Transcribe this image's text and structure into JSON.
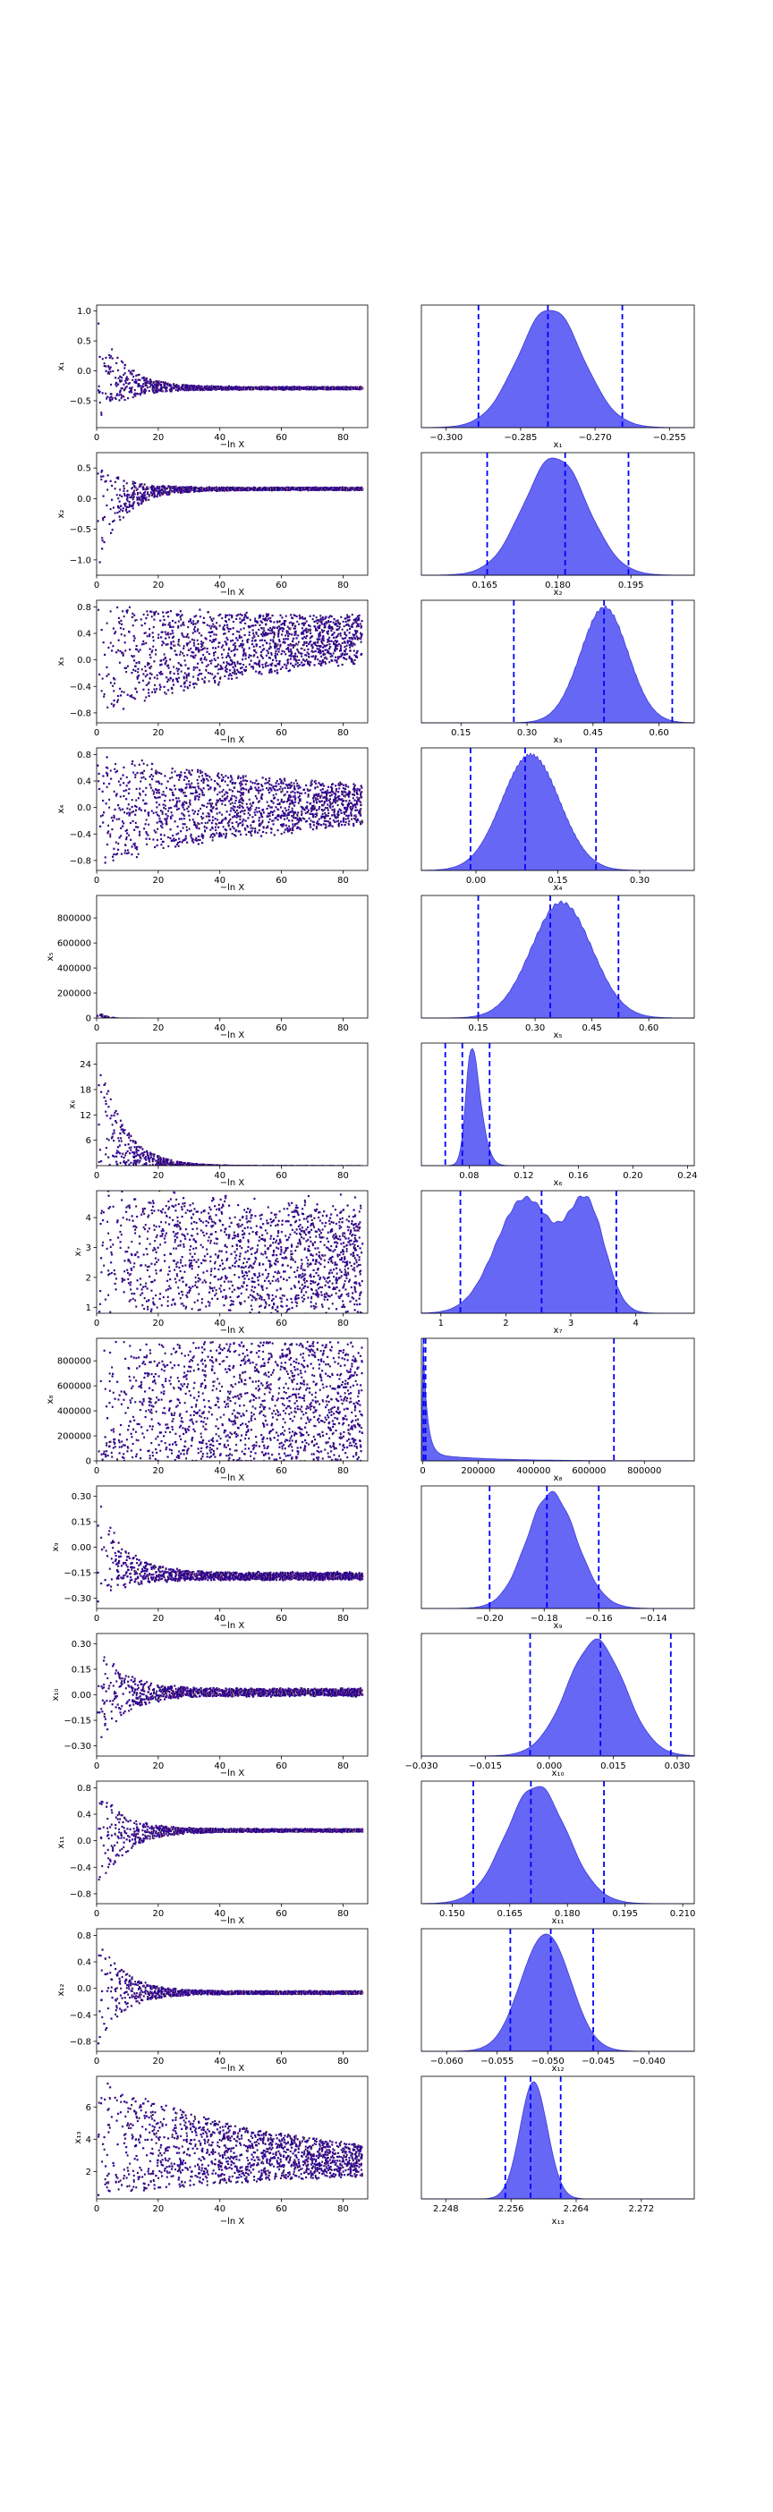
{
  "figure": {
    "colors": {
      "trace_low": "#0d0887",
      "trace_high": "#f0f921",
      "density_fill": "#5656f5",
      "density_edge": "#3b3bd6",
      "quantile_line": "#0000ff",
      "axes": "#000000"
    },
    "trace_xlabel": "−ln X",
    "trace_xticks": [
      "0",
      "20",
      "40",
      "60",
      "80"
    ],
    "trace_xlim": [
      0,
      88
    ]
  },
  "chart_data": [
    {
      "param": "x1",
      "type": "scatter",
      "trace_ylabel": "x₁",
      "trace_yticks": [
        "−0.5",
        "0.0",
        "0.5",
        "1.0"
      ],
      "trace_ylim": [
        -0.95,
        1.1
      ],
      "start_range": [
        -0.85,
        0.9
      ],
      "converged": -0.275,
      "spread": 0.02,
      "density_xlabel": "x₁",
      "density_xticks": [
        "−0.300",
        "−0.285",
        "−0.270",
        "−0.255"
      ],
      "density_xlim": [
        -0.305,
        -0.25
      ],
      "mean": -0.279,
      "sd": 0.0065,
      "quantiles": [
        -0.2935,
        -0.2795,
        -0.2645
      ]
    },
    {
      "param": "x2",
      "type": "scatter",
      "trace_ylabel": "x₂",
      "trace_yticks": [
        "−1.0",
        "−0.5",
        "0.0",
        "0.5"
      ],
      "trace_ylim": [
        -1.25,
        0.75
      ],
      "start_range": [
        -1.15,
        0.62
      ],
      "converged": 0.175,
      "spread": 0.02,
      "density_xlabel": "x₂",
      "density_xticks": [
        "0.165",
        "0.180",
        "0.195"
      ],
      "density_xlim": [
        0.152,
        0.208
      ],
      "mean": 0.1795,
      "sd": 0.0065,
      "quantiles": [
        0.1655,
        0.1815,
        0.1945
      ]
    },
    {
      "param": "x3",
      "type": "scatter",
      "trace_ylabel": "x₃",
      "trace_yticks": [
        "−0.8",
        "−0.4",
        "0.0",
        "0.4",
        "0.8"
      ],
      "trace_ylim": [
        -0.95,
        0.9
      ],
      "start_range": [
        -0.85,
        0.82
      ],
      "converged": 0.45,
      "spread": 0.18,
      "density_xlabel": "x₃",
      "density_xticks": [
        "0.15",
        "0.30",
        "0.45",
        "0.60"
      ],
      "density_xlim": [
        0.06,
        0.68
      ],
      "mean": 0.5,
      "sd": 0.06,
      "skew": -0.5,
      "quantiles": [
        0.27,
        0.475,
        0.63
      ]
    },
    {
      "param": "x4",
      "type": "scatter",
      "trace_ylabel": "x₄",
      "trace_yticks": [
        "−0.8",
        "−0.4",
        "0.0",
        "0.4",
        "0.8"
      ],
      "trace_ylim": [
        -0.95,
        0.9
      ],
      "start_range": [
        -0.85,
        0.82
      ],
      "converged": 0.08,
      "spread": 0.14,
      "density_xlabel": "x₄",
      "density_xticks": [
        "0.00",
        "0.15",
        "0.30"
      ],
      "density_xlim": [
        -0.1,
        0.4
      ],
      "mean": 0.085,
      "sd": 0.055,
      "skew": 0.3,
      "quantiles": [
        -0.01,
        0.09,
        0.22
      ]
    },
    {
      "param": "x5",
      "type": "scatter",
      "trace_ylabel": "x₅",
      "trace_yticks": [
        "0",
        "200000",
        "400000",
        "600000",
        "800000"
      ],
      "trace_ylim": [
        0,
        980000
      ],
      "start_range": [
        0,
        60000
      ],
      "converged": 0.4,
      "spread": 0.1,
      "density_xlabel": "x₅",
      "density_xticks": [
        "0.15",
        "0.30",
        "0.45",
        "0.60"
      ],
      "density_xlim": [
        0.0,
        0.72
      ],
      "mean": 0.37,
      "sd": 0.08,
      "quantiles": [
        0.15,
        0.34,
        0.52
      ]
    },
    {
      "param": "x6",
      "type": "scatter",
      "trace_ylabel": "x₆",
      "trace_yticks": [
        "6",
        "12",
        "18",
        "24"
      ],
      "trace_ylim": [
        0,
        29
      ],
      "start_range": [
        0.5,
        28
      ],
      "converged": 0.08,
      "spread": 0.05,
      "density_xlabel": "x₆",
      "density_xticks": [
        "0.08",
        "0.12",
        "0.16",
        "0.20",
        "0.24"
      ],
      "density_xlim": [
        0.045,
        0.245
      ],
      "mean": 0.078,
      "sd": 0.008,
      "skew": 1.8,
      "quantiles": [
        0.0625,
        0.075,
        0.095
      ]
    },
    {
      "param": "x7",
      "type": "scatter",
      "trace_ylabel": "x₇",
      "trace_yticks": [
        "1",
        "2",
        "3",
        "4"
      ],
      "trace_ylim": [
        0.8,
        4.9
      ],
      "start_range": [
        0.9,
        4.8
      ],
      "converged": 2.6,
      "spread": 1.5,
      "density_xlabel": "x₇",
      "density_xticks": [
        "1",
        "2",
        "3",
        "4"
      ],
      "density_xlim": [
        0.7,
        4.9
      ],
      "mean": 2.3,
      "sd": 0.45,
      "bimodal": [
        3.25,
        0.28,
        0.45
      ],
      "quantiles": [
        1.3,
        2.55,
        3.7
      ]
    },
    {
      "param": "x8",
      "type": "scatter",
      "trace_ylabel": "x₈",
      "trace_yticks": [
        "0",
        "200000",
        "400000",
        "600000",
        "800000"
      ],
      "trace_ylim": [
        0,
        980000
      ],
      "start_range": [
        0,
        960000
      ],
      "converged": 450000,
      "spread": 500000,
      "density_xlabel": "x₈",
      "density_xticks": [
        "0",
        "200000",
        "400000",
        "600000",
        "800000"
      ],
      "density_xlim": [
        -5000,
        980000
      ],
      "mean": 0,
      "sd": 60000,
      "heavy_tail": true,
      "quantiles": [
        3000,
        10000,
        690000
      ]
    },
    {
      "param": "x9",
      "type": "scatter",
      "trace_ylabel": "x₉",
      "trace_yticks": [
        "−0.30",
        "−0.15",
        "0.00",
        "0.15",
        "0.30"
      ],
      "trace_ylim": [
        -0.36,
        0.36
      ],
      "start_range": [
        -0.33,
        0.33
      ],
      "converged": -0.165,
      "spread": 0.02,
      "density_xlabel": "x₉",
      "density_xticks": [
        "−0.20",
        "−0.18",
        "−0.16",
        "−0.14"
      ],
      "density_xlim": [
        -0.225,
        -0.125
      ],
      "mean": -0.182,
      "sd": 0.0105,
      "skew": 0.6,
      "quantiles": [
        -0.2,
        -0.179,
        -0.16
      ]
    },
    {
      "param": "x10",
      "type": "scatter",
      "trace_ylabel": "x₁₀",
      "trace_yticks": [
        "−0.30",
        "−0.15",
        "0.00",
        "0.15",
        "0.30"
      ],
      "trace_ylim": [
        -0.36,
        0.36
      ],
      "start_range": [
        -0.33,
        0.33
      ],
      "converged": 0.02,
      "spread": 0.02,
      "density_xlabel": "x₁₀",
      "density_xticks": [
        "−0.030",
        "−0.015",
        "0.000",
        "0.015",
        "0.030"
      ],
      "density_xlim": [
        -0.03,
        0.034
      ],
      "mean": 0.014,
      "sd": 0.0075,
      "skew": -0.5,
      "quantiles": [
        -0.0045,
        0.012,
        0.0285
      ]
    },
    {
      "param": "x11",
      "type": "scatter",
      "trace_ylabel": "x₁₁",
      "trace_yticks": [
        "−0.8",
        "−0.4",
        "0.0",
        "0.4",
        "0.8"
      ],
      "trace_ylim": [
        -0.95,
        0.9
      ],
      "start_range": [
        -0.85,
        0.85
      ],
      "converged": 0.17,
      "spread": 0.02,
      "density_xlabel": "x₁₁",
      "density_xticks": [
        "0.150",
        "0.165",
        "0.180",
        "0.195",
        "0.210"
      ],
      "density_xlim": [
        0.142,
        0.213
      ],
      "mean": 0.169,
      "sd": 0.0085,
      "skew": 0.4,
      "quantiles": [
        0.1555,
        0.1705,
        0.1895
      ]
    },
    {
      "param": "x12",
      "type": "scatter",
      "trace_ylabel": "x₁₂",
      "trace_yticks": [
        "−0.8",
        "−0.4",
        "0.0",
        "0.4",
        "0.8"
      ],
      "trace_ylim": [
        -0.95,
        0.9
      ],
      "start_range": [
        -0.85,
        0.85
      ],
      "converged": -0.05,
      "spread": 0.02,
      "density_xlabel": "x₁₂",
      "density_xticks": [
        "−0.060",
        "−0.055",
        "−0.050",
        "−0.045",
        "−0.040"
      ],
      "density_xlim": [
        -0.0625,
        -0.0355
      ],
      "mean": -0.0495,
      "sd": 0.0025,
      "skew": -0.3,
      "quantiles": [
        -0.0537,
        -0.0497,
        -0.0455
      ]
    },
    {
      "param": "x13",
      "type": "scatter",
      "trace_ylabel": "x₁₃",
      "trace_yticks": [
        "2",
        "4",
        "6"
      ],
      "trace_ylim": [
        0.3,
        7.9
      ],
      "start_range": [
        0.5,
        7.8
      ],
      "converged": 2.26,
      "spread": 0.15,
      "density_xlabel": "x₁₃",
      "density_xticks": [
        "2.248",
        "2.256",
        "2.264",
        "2.272"
      ],
      "density_xlim": [
        2.245,
        2.2785
      ],
      "mean": 2.2588,
      "sd": 0.0017,
      "quantiles": [
        2.2553,
        2.2584,
        2.2621
      ]
    }
  ]
}
